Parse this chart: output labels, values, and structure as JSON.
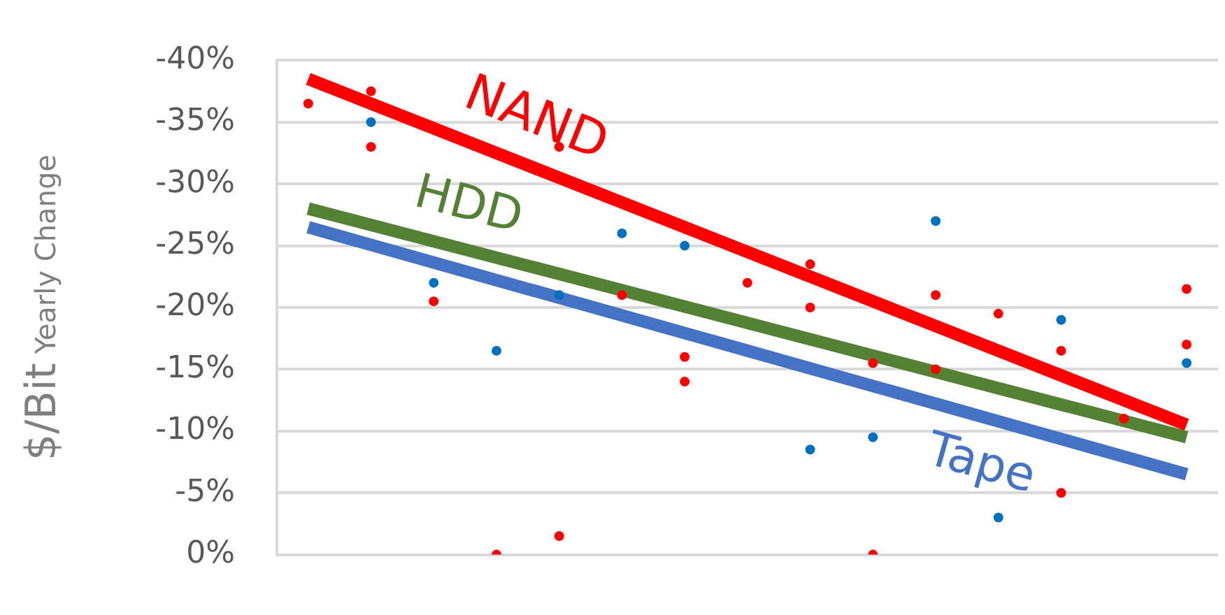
{
  "chart_data": {
    "type": "scatter",
    "ylabel": "$/Bit Yearly Change",
    "categories": [
      null,
      null,
      null,
      null,
      null,
      null,
      null,
      null,
      null,
      null,
      null,
      null,
      null,
      null,
      null
    ],
    "ylim": [
      0,
      -40
    ],
    "yticks": [
      {
        "value": -40,
        "label": "-40%"
      },
      {
        "value": -35,
        "label": "-35%"
      },
      {
        "value": -30,
        "label": "-30%"
      },
      {
        "value": -25,
        "label": "-25%"
      },
      {
        "value": -20,
        "label": "-20%"
      },
      {
        "value": -15,
        "label": "-15%"
      },
      {
        "value": -10,
        "label": "-10%"
      },
      {
        "value": -5,
        "label": "-5%"
      },
      {
        "value": 0,
        "label": "0%"
      }
    ],
    "grid": "y",
    "tick_labels": "y",
    "legend": false,
    "series": [
      {
        "type": "scatter",
        "marker": "circle",
        "color": "#ff0000",
        "values": [
          -36.5,
          -37.5,
          -20.5,
          0,
          -33,
          -21,
          -16,
          -22,
          -23.5,
          0,
          -21,
          -19.5,
          -16.5,
          -11,
          -21.5
        ]
      },
      {
        "type": "scatter",
        "marker": "circle",
        "color": "#ff0000",
        "values": [
          null,
          -33,
          null,
          null,
          -1.5,
          null,
          -14,
          null,
          -20,
          -15.5,
          -15,
          null,
          -5,
          null,
          -17
        ]
      },
      {
        "type": "scatter",
        "marker": "circle",
        "color": "#0070c0",
        "values": [
          null,
          -35,
          -22,
          -16.5,
          -21,
          -26,
          -25,
          null,
          -8.5,
          -9.5,
          -27,
          -3,
          -19,
          null,
          -15.5
        ]
      },
      {
        "type": "line",
        "name": "NAND",
        "marker": "none",
        "color": "#ff0000",
        "values": [
          -38.5,
          null,
          null,
          null,
          null,
          null,
          null,
          null,
          null,
          null,
          null,
          null,
          null,
          null,
          -10.5
        ]
      },
      {
        "type": "line",
        "name": "HDD",
        "marker": "none",
        "color": "#548235",
        "values": [
          -28,
          null,
          null,
          null,
          null,
          null,
          null,
          null,
          null,
          null,
          null,
          null,
          null,
          null,
          -9.5
        ]
      },
      {
        "type": "line",
        "name": "Tape",
        "marker": "none",
        "color": "#4472c4",
        "values": [
          -26.5,
          null,
          null,
          null,
          null,
          null,
          null,
          null,
          null,
          null,
          null,
          null,
          null,
          null,
          -6.5
        ]
      }
    ]
  }
}
